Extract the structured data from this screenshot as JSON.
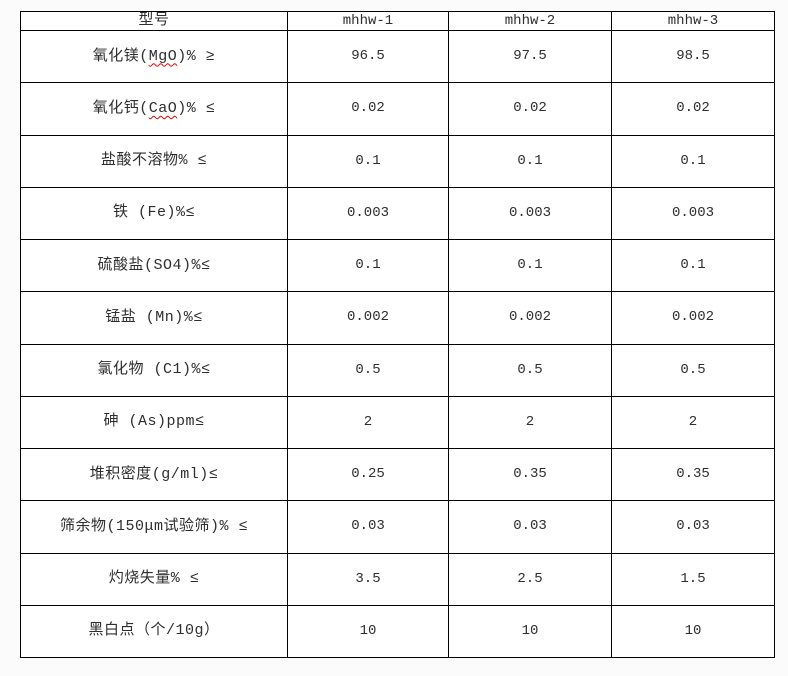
{
  "colors": {
    "border": "#000000",
    "text": "#2e2e2e",
    "spellcheck_underline": "#ee0000",
    "page_background": "#fbfbfb",
    "table_background": "#ffffff"
  },
  "table": {
    "corner_label": "型号",
    "models": [
      "mhhw-1",
      "mhhw-2",
      "mhhw-3"
    ],
    "rows": [
      {
        "label_pre": "氧化镁(",
        "label_mark": "MgO",
        "label_post": ")% ≥",
        "values": [
          "96.5",
          "97.5",
          "98.5"
        ]
      },
      {
        "label_pre": "氧化钙(",
        "label_mark": "CaO",
        "label_post": ")% ≤",
        "values": [
          "0.02",
          "0.02",
          "0.02"
        ]
      },
      {
        "label_pre": "盐酸不溶物% ≤",
        "label_mark": "",
        "label_post": "",
        "values": [
          "0.1",
          "0.1",
          "0.1"
        ]
      },
      {
        "label_pre": "铁 (Fe)%≤",
        "label_mark": "",
        "label_post": "",
        "values": [
          "0.003",
          "0.003",
          "0.003"
        ]
      },
      {
        "label_pre": "硫酸盐(SO4)%≤",
        "label_mark": "",
        "label_post": "",
        "values": [
          "0.1",
          "0.1",
          "0.1"
        ]
      },
      {
        "label_pre": "锰盐 (Mn)%≤",
        "label_mark": "",
        "label_post": "",
        "values": [
          "0.002",
          "0.002",
          "0.002"
        ]
      },
      {
        "label_pre": "氯化物 (C1)%≤",
        "label_mark": "",
        "label_post": "",
        "values": [
          "0.5",
          "0.5",
          "0.5"
        ]
      },
      {
        "label_pre": "砷 (As)ppm≤",
        "label_mark": "",
        "label_post": "",
        "values": [
          "2",
          "2",
          "2"
        ]
      },
      {
        "label_pre": "堆积密度(g/ml)≤",
        "label_mark": "",
        "label_post": "",
        "values": [
          "0.25",
          "0.35",
          "0.35"
        ]
      },
      {
        "label_pre": "筛余物(150μm试验筛)% ≤",
        "label_mark": "",
        "label_post": "",
        "values": [
          "0.03",
          "0.03",
          "0.03"
        ]
      },
      {
        "label_pre": "灼烧失量% ≤",
        "label_mark": "",
        "label_post": "",
        "values": [
          "3.5",
          "2.5",
          "1.5"
        ]
      },
      {
        "label_pre": "黑白点（个/10g）",
        "label_mark": "",
        "label_post": "",
        "values": [
          "10",
          "10",
          "10"
        ]
      }
    ]
  }
}
